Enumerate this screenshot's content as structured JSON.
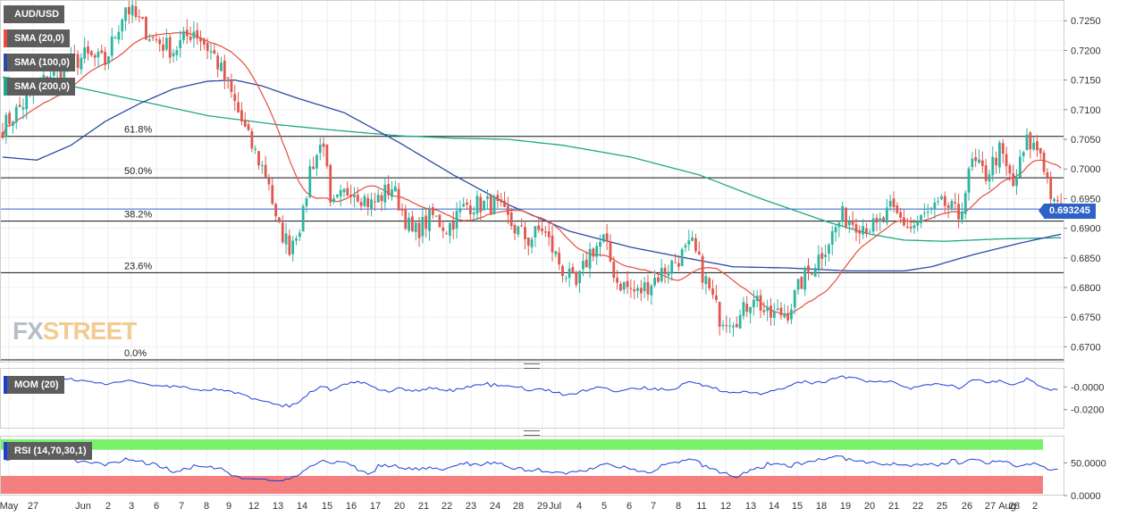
{
  "instrument": "AUD/USD",
  "brand": {
    "fx": "FX",
    "street": "STREET"
  },
  "indicators": {
    "sma20": "SMA (20,0)",
    "sma100": "SMA (100,0)",
    "sma200": "SMA (200,0)",
    "mom": "MOM (20)",
    "rsi": "RSI (14,70,30,1)"
  },
  "current_price": "0.693245",
  "colors": {
    "up": "#2db5a0",
    "down": "#e0574f",
    "sma20": "#e74c3c",
    "sma100": "#2b4aa6",
    "sma200": "#1fa78a",
    "mom": "#1a3fd6",
    "rsi": "#1a3fd6",
    "overbought": "#77f06a",
    "oversold": "#f57e7e",
    "price_tag": "#2d63c6"
  },
  "chart_data": {
    "type": "candlestick",
    "price_axis": {
      "ylim": [
        0.6675,
        0.7285
      ],
      "ticks": [
        "0.7250",
        "0.7200",
        "0.7150",
        "0.7100",
        "0.7050",
        "0.7000",
        "0.6950",
        "0.6900",
        "0.6850",
        "0.6800",
        "0.6750",
        "0.6700"
      ]
    },
    "x_tick_labels": [
      "May",
      "27",
      "Jun",
      "2",
      "3",
      "6",
      "7",
      "8",
      "9",
      "12",
      "13",
      "14",
      "15",
      "16",
      "17",
      "20",
      "21",
      "22",
      "23",
      "24",
      "28",
      "29",
      "Jul",
      "4",
      "5",
      "6",
      "7",
      "8",
      "11",
      "12",
      "13",
      "14",
      "15",
      "18",
      "19",
      "20",
      "21",
      "22",
      "25",
      "26",
      "27",
      "28",
      "Aug",
      "2"
    ],
    "fibonacci": [
      {
        "label": "61.8%",
        "value": 0.7055
      },
      {
        "label": "50.0%",
        "value": 0.6985
      },
      {
        "label": "38.2%",
        "value": 0.6912
      },
      {
        "label": "23.6%",
        "value": 0.6825
      },
      {
        "label": "0.0%",
        "value": 0.6678
      }
    ],
    "close_path": [
      [
        0,
        0.707
      ],
      [
        6,
        0.711
      ],
      [
        14,
        0.716
      ],
      [
        24,
        0.719
      ],
      [
        30,
        0.718
      ],
      [
        36,
        0.7275
      ],
      [
        44,
        0.722
      ],
      [
        50,
        0.72
      ],
      [
        56,
        0.7235
      ],
      [
        62,
        0.719
      ],
      [
        66,
        0.714
      ],
      [
        72,
        0.705
      ],
      [
        78,
        0.698
      ],
      [
        80,
        0.691
      ],
      [
        84,
        0.687
      ],
      [
        88,
        0.692
      ],
      [
        90,
        0.7
      ],
      [
        94,
        0.705
      ],
      [
        96,
        0.693
      ],
      [
        102,
        0.697
      ],
      [
        108,
        0.694
      ],
      [
        114,
        0.697
      ],
      [
        120,
        0.689
      ],
      [
        126,
        0.692
      ],
      [
        130,
        0.69
      ],
      [
        136,
        0.694
      ],
      [
        144,
        0.694
      ],
      [
        150,
        0.69
      ],
      [
        154,
        0.688
      ],
      [
        158,
        0.69
      ],
      [
        164,
        0.683
      ],
      [
        168,
        0.68
      ],
      [
        172,
        0.686
      ],
      [
        176,
        0.688
      ],
      [
        180,
        0.681
      ],
      [
        186,
        0.679
      ],
      [
        190,
        0.681
      ],
      [
        196,
        0.684
      ],
      [
        202,
        0.687
      ],
      [
        206,
        0.681
      ],
      [
        210,
        0.675
      ],
      [
        216,
        0.675
      ],
      [
        220,
        0.679
      ],
      [
        224,
        0.675
      ],
      [
        230,
        0.676
      ],
      [
        234,
        0.681
      ],
      [
        240,
        0.686
      ],
      [
        246,
        0.692
      ],
      [
        250,
        0.691
      ],
      [
        256,
        0.69
      ],
      [
        260,
        0.693
      ],
      [
        266,
        0.69
      ],
      [
        270,
        0.692
      ],
      [
        276,
        0.694
      ],
      [
        280,
        0.692
      ],
      [
        284,
        0.701
      ],
      [
        288,
        0.699
      ],
      [
        292,
        0.703
      ],
      [
        296,
        0.697
      ],
      [
        300,
        0.7045
      ],
      [
        304,
        0.703
      ],
      [
        308,
        0.6935
      ]
    ],
    "sma100_path": [
      [
        0,
        0.702
      ],
      [
        10,
        0.7015
      ],
      [
        20,
        0.704
      ],
      [
        30,
        0.708
      ],
      [
        40,
        0.711
      ],
      [
        50,
        0.7135
      ],
      [
        60,
        0.7148
      ],
      [
        68,
        0.715
      ],
      [
        76,
        0.714
      ],
      [
        86,
        0.712
      ],
      [
        100,
        0.7095
      ],
      [
        116,
        0.7045
      ],
      [
        132,
        0.699
      ],
      [
        148,
        0.694
      ],
      [
        166,
        0.6895
      ],
      [
        184,
        0.6868
      ],
      [
        200,
        0.685
      ],
      [
        214,
        0.6835
      ],
      [
        230,
        0.6833
      ],
      [
        248,
        0.6828
      ],
      [
        264,
        0.6828
      ],
      [
        272,
        0.6835
      ],
      [
        284,
        0.6855
      ],
      [
        298,
        0.6875
      ],
      [
        310,
        0.689
      ]
    ],
    "sma200_path": [
      [
        0,
        0.7155
      ],
      [
        20,
        0.714
      ],
      [
        40,
        0.7115
      ],
      [
        60,
        0.709
      ],
      [
        80,
        0.7075
      ],
      [
        96,
        0.7066
      ],
      [
        116,
        0.7056
      ],
      [
        132,
        0.7052
      ],
      [
        148,
        0.705
      ],
      [
        164,
        0.704
      ],
      [
        184,
        0.702
      ],
      [
        204,
        0.699
      ],
      [
        222,
        0.695
      ],
      [
        242,
        0.691
      ],
      [
        254,
        0.689
      ],
      [
        264,
        0.688
      ],
      [
        276,
        0.6878
      ],
      [
        292,
        0.6882
      ],
      [
        310,
        0.6884
      ]
    ],
    "mom": {
      "ylim": [
        -0.036,
        0.016
      ],
      "ticks": [
        "-0.0000",
        "-0.0200"
      ]
    },
    "rsi": {
      "ylim": [
        0,
        90
      ],
      "overbought": 70,
      "oversold": 30,
      "ticks": [
        "50.0000",
        "0.0000"
      ]
    }
  }
}
